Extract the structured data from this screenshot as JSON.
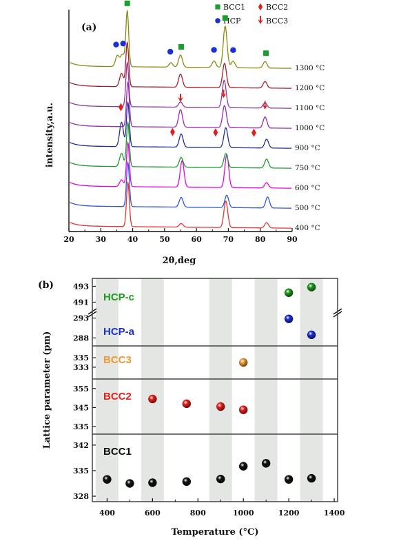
{
  "chart_data": [
    {
      "type": "line",
      "panel_label": "(a)",
      "xlabel": "2θ,deg",
      "ylabel": "intensity,a.u.",
      "xlim": [
        20,
        90
      ],
      "xticks": [
        "20",
        "30",
        "40",
        "50",
        "60",
        "70",
        "80",
        "90"
      ],
      "legend": {
        "placement": "top-right",
        "entries": [
          {
            "label": "BCC1",
            "marker": "square",
            "color": "#17a02e"
          },
          {
            "label": "BCC2",
            "marker": "diamond",
            "color": "#e02020"
          },
          {
            "label": "HCP",
            "marker": "circle",
            "color": "#1a2fd8"
          },
          {
            "label": "BCC3",
            "marker": "down-arrow",
            "color": "#e02020"
          }
        ]
      },
      "series": [
        {
          "name": "400 °C",
          "color": "#e83030",
          "peaks": [
            [
              38.5,
              1.0
            ],
            [
              55.2,
              0.08
            ],
            [
              69.2,
              0.6
            ],
            [
              82.0,
              0.12
            ]
          ]
        },
        {
          "name": "500 °C",
          "color": "#2b57d6",
          "peaks": [
            [
              38.5,
              1.0
            ],
            [
              55.2,
              0.22
            ],
            [
              69.5,
              0.28
            ],
            [
              82.3,
              0.25
            ]
          ]
        },
        {
          "name": "600 °C",
          "color": "#e800e8",
          "peaks": [
            [
              36.5,
              0.15
            ],
            [
              38.5,
              1.0
            ],
            [
              55.5,
              0.6
            ],
            [
              69.5,
              0.75
            ],
            [
              82.0,
              0.12
            ]
          ]
        },
        {
          "name": "750 °C",
          "color": "#1a9a2a",
          "peaks": [
            [
              36.5,
              0.3
            ],
            [
              38.5,
              1.0
            ],
            [
              55.2,
              0.22
            ],
            [
              69.2,
              0.32
            ],
            [
              82.0,
              0.2
            ]
          ]
        },
        {
          "name": "900 °C",
          "color": "#1c2f90",
          "peaks": [
            [
              36.5,
              0.55
            ],
            [
              38.5,
              1.0
            ],
            [
              55.2,
              0.3
            ],
            [
              69.2,
              0.45
            ],
            [
              82.0,
              0.2
            ]
          ]
        },
        {
          "name": "1000 °C",
          "color": "#9a2ab8",
          "peaks": [
            [
              38.5,
              1.0
            ],
            [
              55.0,
              0.4
            ],
            [
              68.8,
              0.5
            ],
            [
              81.5,
              0.25
            ]
          ]
        },
        {
          "name": "1100 °C",
          "color": "#8a3a9a",
          "peaks": [
            [
              38.3,
              1.0
            ],
            [
              55.0,
              0.12
            ],
            [
              68.7,
              0.62
            ],
            [
              81.5,
              0.12
            ]
          ]
        },
        {
          "name": "1200 °C",
          "color": "#a81c2a",
          "peaks": [
            [
              36.5,
              0.3
            ],
            [
              38.3,
              1.0
            ],
            [
              55.0,
              0.3
            ],
            [
              68.8,
              0.55
            ],
            [
              81.5,
              0.15
            ]
          ]
        },
        {
          "name": "1300 °C",
          "color": "#8a8a10",
          "peaks": [
            [
              35.2,
              0.2
            ],
            [
              36.8,
              0.22
            ],
            [
              38.3,
              1.0
            ],
            [
              52.0,
              0.08
            ],
            [
              55.0,
              0.22
            ],
            [
              65.5,
              0.12
            ],
            [
              69.0,
              0.75
            ],
            [
              71.5,
              0.12
            ],
            [
              81.5,
              0.12
            ]
          ]
        }
      ],
      "markers": [
        {
          "type": "BCC1",
          "x": 38.3,
          "curve": "1300 °C"
        },
        {
          "type": "BCC1",
          "x": 55.2,
          "curve": "1300 °C"
        },
        {
          "type": "BCC1",
          "x": 69.0,
          "curve": "1300 °C"
        },
        {
          "type": "BCC1",
          "x": 81.8,
          "curve": "1300 °C"
        },
        {
          "type": "HCP",
          "x": 34.8,
          "curve": "1300 °C"
        },
        {
          "type": "HCP",
          "x": 37.0,
          "curve": "1300 °C"
        },
        {
          "type": "HCP",
          "x": 51.8,
          "curve": "1300 °C"
        },
        {
          "type": "HCP",
          "x": 65.5,
          "curve": "1300 °C"
        },
        {
          "type": "HCP",
          "x": 71.5,
          "curve": "1300 °C"
        },
        {
          "type": "BCC3",
          "x": 55.0,
          "curve": "1000 °C"
        },
        {
          "type": "BCC3",
          "x": 68.5,
          "curve": "1000 °C"
        },
        {
          "type": "BCC3",
          "x": 81.5,
          "curve": "1000 °C"
        },
        {
          "type": "BCC2",
          "x": 36.3,
          "curve": "900 °C"
        },
        {
          "type": "BCC2",
          "x": 52.5,
          "curve": "900 °C"
        },
        {
          "type": "BCC2",
          "x": 66.0,
          "curve": "900 °C"
        },
        {
          "type": "BCC2",
          "x": 78.0,
          "curve": "900 °C"
        }
      ]
    },
    {
      "type": "scatter",
      "panel_label": "(b)",
      "xlabel": "Temperature (°C)",
      "ylabel": "Lattice parameter (pm)",
      "xlim": [
        335,
        1415
      ],
      "xticks": [
        400,
        600,
        800,
        1000,
        1200,
        1400
      ],
      "shaded_bands": [
        [
          350,
          450
        ],
        [
          550,
          650
        ],
        [
          850,
          950
        ],
        [
          1050,
          1150
        ],
        [
          1250,
          1350
        ]
      ],
      "grid": false,
      "subpanels": [
        {
          "labels": [
            {
              "text": "HCP-c",
              "color": "#1f9a1f"
            },
            {
              "text": "HCP-a",
              "color": "#1c2fd8"
            }
          ],
          "segments": [
            {
              "ylim": [
                490,
                494
              ],
              "yticks": [
                491,
                493
              ]
            },
            {
              "ylim": [
                286,
                295
              ],
              "yticks": [
                288,
                293
              ]
            }
          ],
          "series": [
            {
              "name": "HCP-c",
              "segment": 0,
              "color": "#1f9a1f",
              "points": [
                [
                  1200,
                  492.2
                ],
                [
                  1300,
                  492.9
                ]
              ]
            },
            {
              "name": "HCP-a",
              "segment": 1,
              "color": "#1c2fd8",
              "points": [
                [
                  1200,
                  292.8
                ],
                [
                  1300,
                  288.8
                ]
              ]
            }
          ]
        },
        {
          "labels": [
            {
              "text": "BCC3",
              "color": "#f09830"
            }
          ],
          "ylim": [
            330.5,
            337.5
          ],
          "yticks": [
            333,
            335
          ],
          "series": [
            {
              "name": "BCC3",
              "color": "#f09830",
              "points": [
                [
                  1000,
                  334
                ]
              ]
            }
          ]
        },
        {
          "labels": [
            {
              "text": "BCC2",
              "color": "#e8201c"
            }
          ],
          "ylim": [
            331,
            360
          ],
          "yticks": [
            335,
            345,
            355
          ],
          "series": [
            {
              "name": "BCC2",
              "color": "#e8201c",
              "points": [
                [
                  600,
                  349.5
                ],
                [
                  750,
                  347.0
                ],
                [
                  900,
                  345.5
                ],
                [
                  1000,
                  343.8
                ]
              ]
            }
          ]
        },
        {
          "labels": [
            {
              "text": "BCC1",
              "color": "#111111"
            }
          ],
          "ylim": [
            326.5,
            345
          ],
          "yticks": [
            328,
            335,
            342
          ],
          "series": [
            {
              "name": "BCC1",
              "color": "#111111",
              "points": [
                [
                  400,
                  332.6
                ],
                [
                  500,
                  331.5
                ],
                [
                  600,
                  331.7
                ],
                [
                  750,
                  332.0
                ],
                [
                  900,
                  332.7
                ],
                [
                  1000,
                  336.2
                ],
                [
                  1100,
                  337.0
                ],
                [
                  1200,
                  332.6
                ],
                [
                  1300,
                  332.9
                ]
              ]
            }
          ]
        }
      ]
    }
  ]
}
